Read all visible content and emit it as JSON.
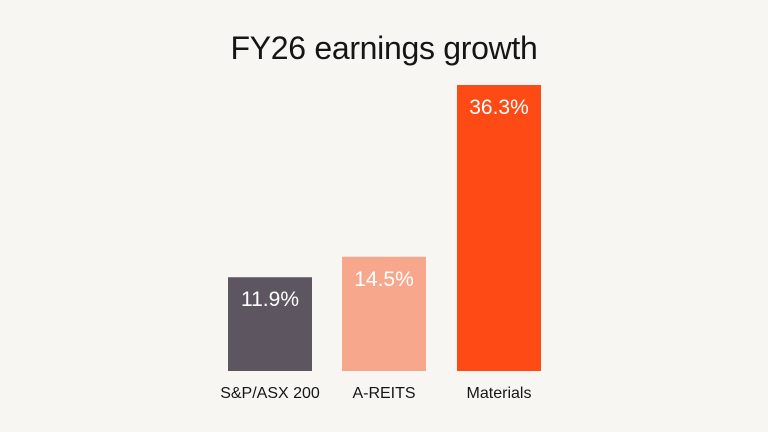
{
  "chart_data": {
    "type": "bar",
    "title": "FY26 earnings growth",
    "categories": [
      "S&P/ASX 200",
      "A-REITS",
      "Materials"
    ],
    "values": [
      11.9,
      14.5,
      36.3
    ],
    "value_labels": [
      "11.9%",
      "14.5%",
      "36.3%"
    ],
    "colors": [
      "#5d5660",
      "#f6a78c",
      "#fe4a15"
    ],
    "unit": "%",
    "ylim": [
      0,
      36.3
    ],
    "grid": false,
    "legend": "none"
  }
}
